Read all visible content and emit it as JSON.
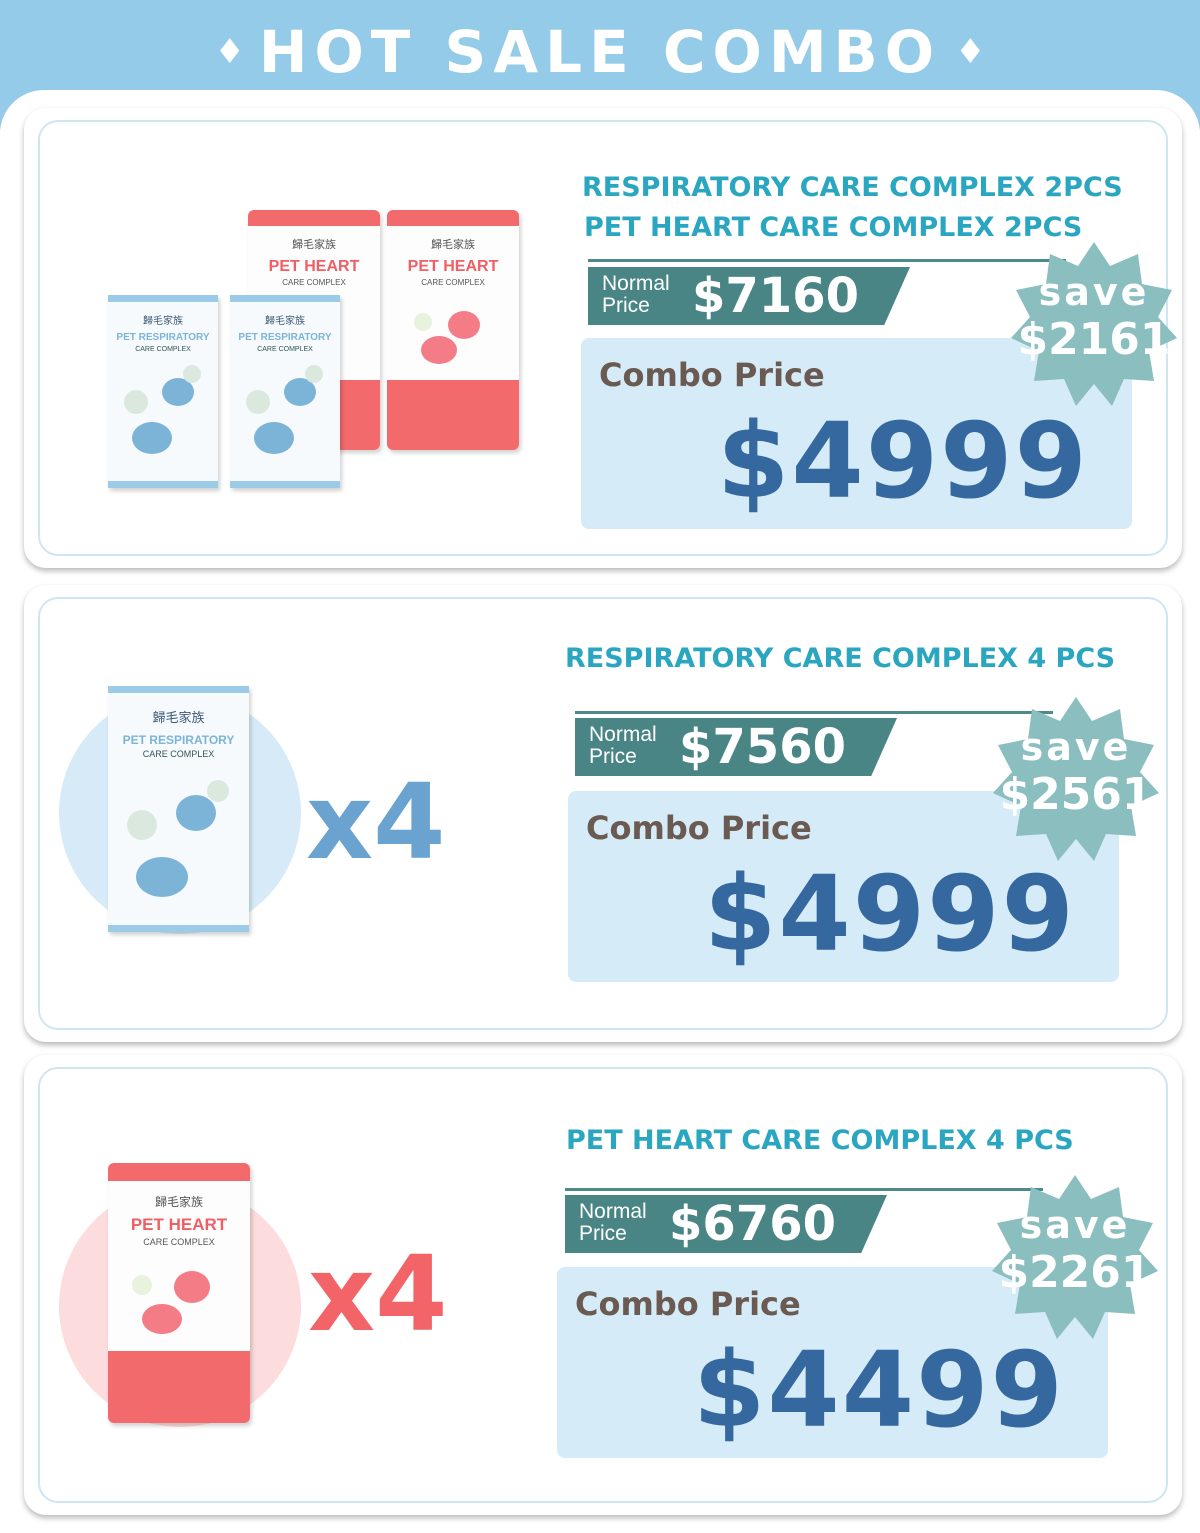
{
  "header": {
    "title": "HOT SALE COMBO",
    "diamond": "♦"
  },
  "colors": {
    "header": "#93cbe8",
    "title_teal": "#2aa6c1",
    "normal_tag": "#4a8586",
    "combo_box": "#d5ebf7",
    "combo_price": "#35689e",
    "badge": "#8bbfbf",
    "x4_blue": "#6aa3d0",
    "x4_pink": "#f26468"
  },
  "products": {
    "respiratory": {
      "brand": "歸毛家族",
      "name_line1": "PET",
      "name_line2": "RESPIRATORY",
      "sub": "CARE COMPLEX",
      "color": "#9ccbe8",
      "icon": "dog-cat-illustration-icon"
    },
    "heart": {
      "brand": "歸毛家族",
      "name_line1": "PET",
      "name_line2": "HEART",
      "sub": "CARE COMPLEX",
      "color": "#f26a6b",
      "icon": "dog-cat-illustration-icon"
    }
  },
  "combos": [
    {
      "title_lines": [
        "RESPIRATORY CARE COMPLEX 2PCS",
        "PET HEART CARE COMPLEX 2PCS"
      ],
      "normal_label_1": "Normal",
      "normal_label_2": "Price",
      "normal_price": "$7160",
      "combo_label": "Combo Price",
      "combo_price": "$4999",
      "save_label": "save",
      "save_amount": "$2161"
    },
    {
      "title_lines": [
        "RESPIRATORY CARE COMPLEX 4 PCS"
      ],
      "multiplier": "x4",
      "normal_label_1": "Normal",
      "normal_label_2": "Price",
      "normal_price": "$7560",
      "combo_label": "Combo Price",
      "combo_price": "$4999",
      "save_label": "save",
      "save_amount": "$2561"
    },
    {
      "title_lines": [
        "PET HEART CARE COMPLEX 4 PCS"
      ],
      "multiplier": "x4",
      "normal_label_1": "Normal",
      "normal_label_2": "Price",
      "normal_price": "$6760",
      "combo_label": "Combo Price",
      "combo_price": "$4499",
      "save_label": "save",
      "save_amount": "$2261"
    }
  ]
}
